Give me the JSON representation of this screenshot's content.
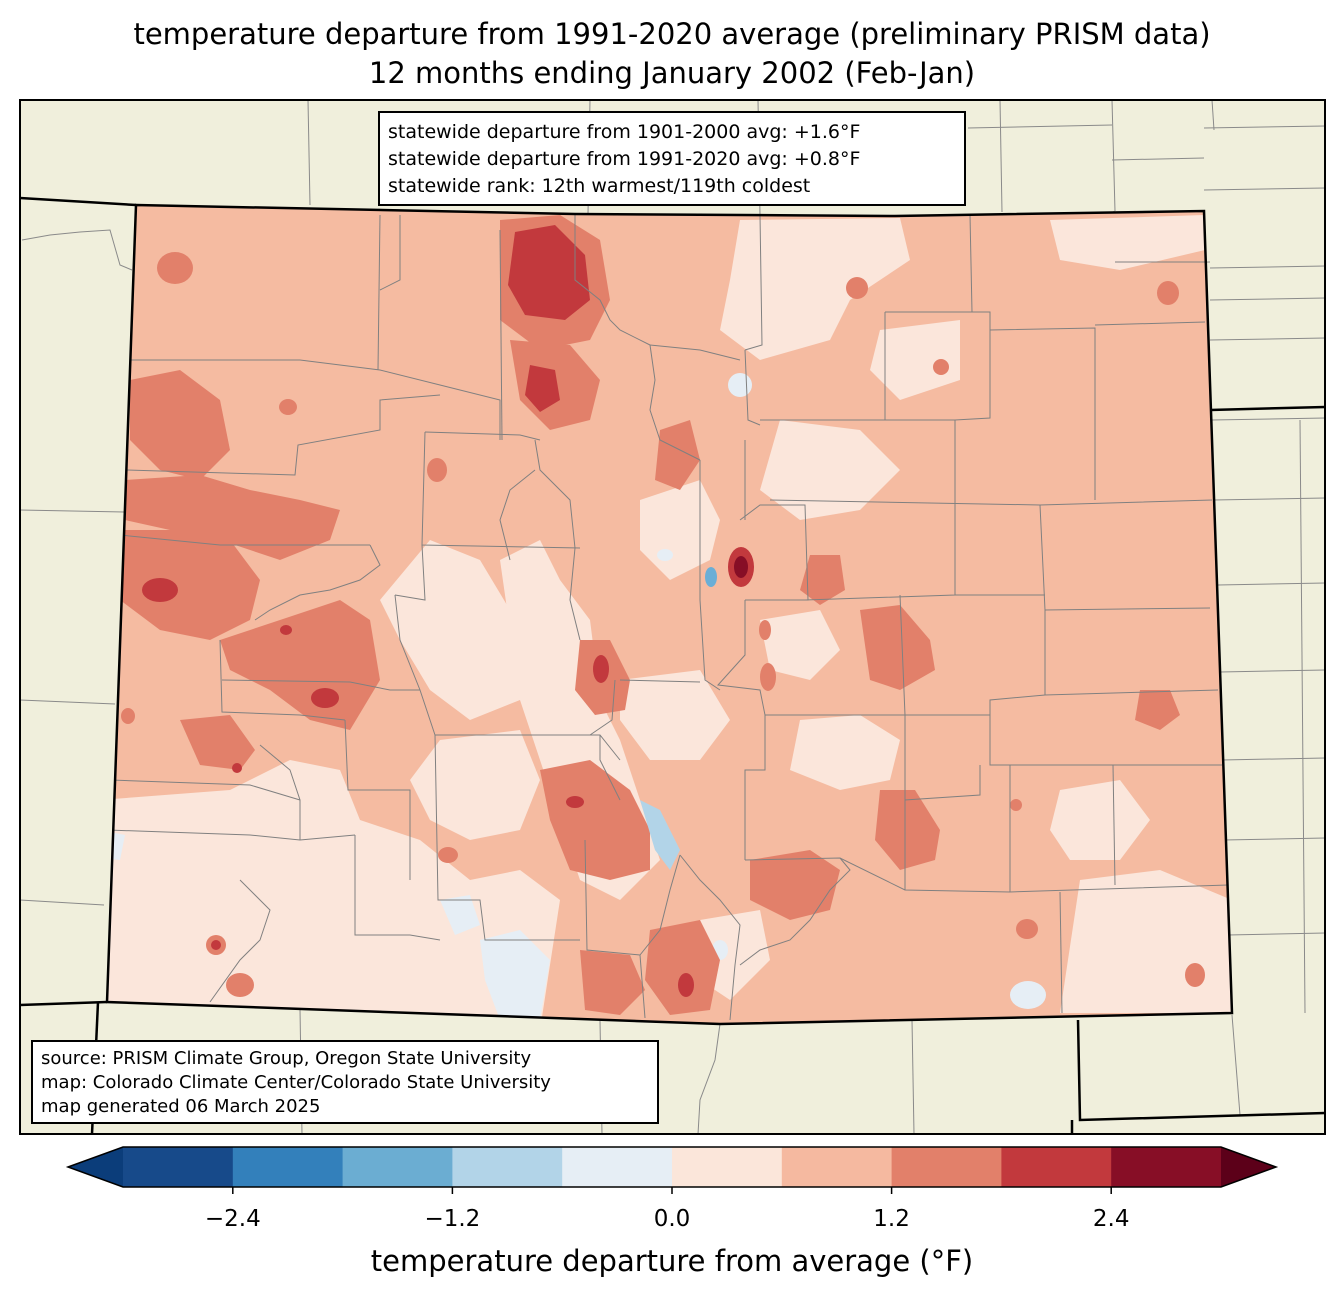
{
  "title_line1": "temperature departure from 1991-2020 average (preliminary PRISM data)",
  "title_line2": "12 months ending January 2002 (Feb-Jan)",
  "stats": {
    "line1": "statewide departure from 1901-2000 avg: +1.6°F",
    "line2": "statewide departure from 1991-2020 avg: +0.8°F",
    "line3": "statewide rank: 12th warmest/119th coldest"
  },
  "source": {
    "line1": "source: PRISM Climate Group, Oregon State University",
    "line2": "map: Colorado Climate Center/Colorado State University",
    "line3": "map generated 06 March 2025"
  },
  "colorbar": {
    "label": "temperature departure from average (°F)",
    "ticks": [
      "−2.4",
      "−1.2",
      "0.0",
      "1.2",
      "2.4"
    ],
    "tick_values": [
      -2.4,
      -1.2,
      0.0,
      1.2,
      2.4
    ],
    "bin_edges": [
      -3.0,
      -2.4,
      -1.8,
      -1.2,
      -0.6,
      0.0,
      0.6,
      1.2,
      1.8,
      2.4,
      3.0
    ],
    "colors": [
      "#0b3d7a",
      "#174a8a",
      "#3380bb",
      "#6badd2",
      "#b2d4e8",
      "#e6eef5",
      "#fbe6da",
      "#f5b9a0",
      "#e2806a",
      "#c2393d",
      "#870e26",
      "#5c0019"
    ]
  },
  "map_colors": {
    "land": "#f0efdc",
    "base": "#f5bba1",
    "near_zero": "#fbe6db",
    "slight_cool": "#e6eef5",
    "warm": "#e2806a",
    "hot": "#c2393d",
    "very_hot": "#870e26",
    "cool": "#6aaed6"
  }
}
